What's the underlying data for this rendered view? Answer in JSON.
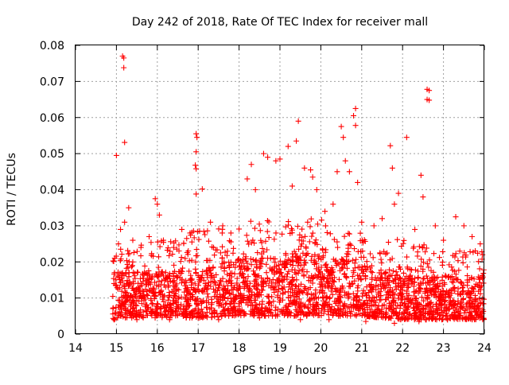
{
  "chart_data": {
    "type": "scatter",
    "title": "Day 242 of 2018, Rate Of TEC Index for receiver mall",
    "xlabel": "GPS time / hours",
    "ylabel": "ROTI / TECUs",
    "xlim": [
      14,
      24
    ],
    "ylim": [
      0,
      0.08
    ],
    "x_ticks": [
      "14",
      "15",
      "16",
      "17",
      "18",
      "19",
      "20",
      "21",
      "22",
      "23",
      "24"
    ],
    "y_ticks": [
      "0",
      "0.01",
      "0.02",
      "0.03",
      "0.04",
      "0.05",
      "0.06",
      "0.07",
      "0.08"
    ],
    "grid": true,
    "marker": "plus",
    "series_color": "#ff0000",
    "series": [
      {
        "points": [
          [
            15.0,
            0.0495
          ],
          [
            15.15,
            0.077
          ],
          [
            15.18,
            0.0765
          ],
          [
            15.18,
            0.0738
          ],
          [
            15.2,
            0.0531
          ],
          [
            15.3,
            0.035
          ],
          [
            15.1,
            0.029
          ],
          [
            15.05,
            0.025
          ],
          [
            15.2,
            0.031
          ],
          [
            15.4,
            0.026
          ],
          [
            15.6,
            0.024
          ],
          [
            15.8,
            0.027
          ],
          [
            15.95,
            0.0375
          ],
          [
            16.0,
            0.036
          ],
          [
            16.05,
            0.033
          ],
          [
            16.15,
            0.026
          ],
          [
            16.4,
            0.024
          ],
          [
            16.6,
            0.029
          ],
          [
            16.8,
            0.028
          ],
          [
            16.95,
            0.0555
          ],
          [
            16.97,
            0.0545
          ],
          [
            16.95,
            0.0505
          ],
          [
            16.93,
            0.0468
          ],
          [
            16.95,
            0.0458
          ],
          [
            16.95,
            0.0388
          ],
          [
            17.1,
            0.0402
          ],
          [
            17.3,
            0.031
          ],
          [
            17.6,
            0.03
          ],
          [
            17.8,
            0.028
          ],
          [
            18.2,
            0.043
          ],
          [
            18.3,
            0.047
          ],
          [
            18.4,
            0.04
          ],
          [
            18.6,
            0.05
          ],
          [
            18.7,
            0.049
          ],
          [
            18.9,
            0.048
          ],
          [
            19.0,
            0.0485
          ],
          [
            19.2,
            0.052
          ],
          [
            19.3,
            0.041
          ],
          [
            19.4,
            0.0535
          ],
          [
            19.45,
            0.059
          ],
          [
            19.6,
            0.046
          ],
          [
            19.75,
            0.0455
          ],
          [
            19.8,
            0.0435
          ],
          [
            19.9,
            0.04
          ],
          [
            20.1,
            0.034
          ],
          [
            20.3,
            0.036
          ],
          [
            20.4,
            0.045
          ],
          [
            20.5,
            0.0575
          ],
          [
            20.55,
            0.0545
          ],
          [
            20.6,
            0.048
          ],
          [
            20.7,
            0.045
          ],
          [
            20.8,
            0.0605
          ],
          [
            20.85,
            0.0625
          ],
          [
            20.85,
            0.0578
          ],
          [
            20.9,
            0.042
          ],
          [
            21.0,
            0.031
          ],
          [
            21.3,
            0.03
          ],
          [
            21.5,
            0.032
          ],
          [
            21.7,
            0.0522
          ],
          [
            21.75,
            0.046
          ],
          [
            21.8,
            0.036
          ],
          [
            21.9,
            0.039
          ],
          [
            22.1,
            0.0545
          ],
          [
            22.3,
            0.029
          ],
          [
            22.45,
            0.044
          ],
          [
            22.5,
            0.038
          ],
          [
            22.6,
            0.0678
          ],
          [
            22.65,
            0.0675
          ],
          [
            22.6,
            0.065
          ],
          [
            22.65,
            0.0648
          ],
          [
            22.8,
            0.03
          ],
          [
            23.0,
            0.026
          ],
          [
            23.3,
            0.0325
          ],
          [
            23.5,
            0.03
          ],
          [
            23.7,
            0.027
          ],
          [
            23.9,
            0.025
          ],
          [
            15.5,
            0.004
          ],
          [
            16.3,
            0.004
          ],
          [
            17.5,
            0.004
          ],
          [
            18.5,
            0.0045
          ],
          [
            19.5,
            0.004
          ],
          [
            20.2,
            0.004
          ],
          [
            21.1,
            0.0035
          ],
          [
            21.8,
            0.003
          ],
          [
            22.4,
            0.0035
          ],
          [
            23.1,
            0.004
          ]
        ],
        "density": {
          "x_range": [
            14.9,
            24.0
          ],
          "hourly_profile": [
            {
              "x": 15.0,
              "floor": 0.0045,
              "typical": 0.011,
              "upper": 0.027
            },
            {
              "x": 16.0,
              "floor": 0.0045,
              "typical": 0.011,
              "upper": 0.026
            },
            {
              "x": 17.0,
              "floor": 0.0045,
              "typical": 0.011,
              "upper": 0.029
            },
            {
              "x": 18.0,
              "floor": 0.005,
              "typical": 0.013,
              "upper": 0.031
            },
            {
              "x": 19.0,
              "floor": 0.005,
              "typical": 0.014,
              "upper": 0.032
            },
            {
              "x": 20.0,
              "floor": 0.005,
              "typical": 0.014,
              "upper": 0.032
            },
            {
              "x": 21.0,
              "floor": 0.005,
              "typical": 0.012,
              "upper": 0.028
            },
            {
              "x": 22.0,
              "floor": 0.004,
              "typical": 0.01,
              "upper": 0.026
            },
            {
              "x": 23.0,
              "floor": 0.004,
              "typical": 0.01,
              "upper": 0.024
            },
            {
              "x": 24.0,
              "floor": 0.004,
              "typical": 0.01,
              "upper": 0.023
            }
          ]
        }
      }
    ]
  }
}
